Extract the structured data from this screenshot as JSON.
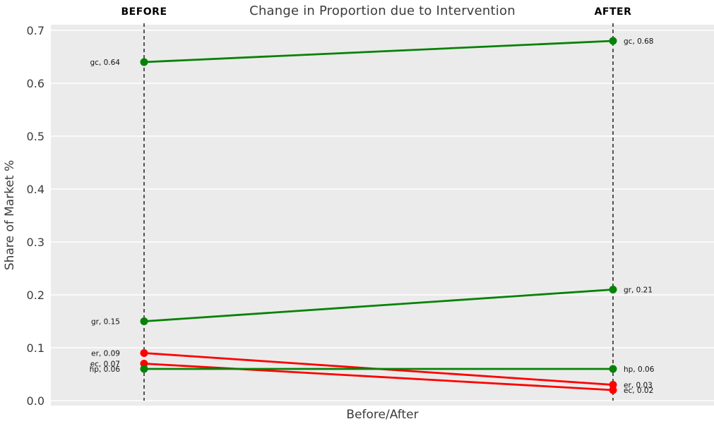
{
  "chart_data": {
    "type": "line",
    "variant": "slopegraph",
    "title": "Change in Proportion due to Intervention",
    "xlabel": "Before/After",
    "ylabel": "Share of Market %",
    "columns": [
      "BEFORE",
      "AFTER"
    ],
    "ylim": [
      0.0,
      0.7
    ],
    "yticks": [
      "0.0",
      "0.1",
      "0.2",
      "0.3",
      "0.4",
      "0.5",
      "0.6",
      "0.7"
    ],
    "grid": "horizontal major gridlines, white on gray panel",
    "legend_position": "none",
    "colors": {
      "increase": "#068206",
      "decrease": "#ff0000",
      "panel_bg": "#ebebeb",
      "grid": "#ffffff",
      "guide_line": "#000000",
      "text": "#3c3c3c",
      "point_label": "#111111"
    },
    "series": [
      {
        "name": "gc",
        "before": 0.64,
        "after": 0.68,
        "trend": "increase",
        "label_before": "gc, 0.64",
        "label_after": "gc, 0.68"
      },
      {
        "name": "gr",
        "before": 0.15,
        "after": 0.21,
        "trend": "increase",
        "label_before": "gr, 0.15",
        "label_after": "gr, 0.21"
      },
      {
        "name": "er",
        "before": 0.09,
        "after": 0.03,
        "trend": "decrease",
        "label_before": "er, 0.09",
        "label_after": "er, 0.03"
      },
      {
        "name": "ec",
        "before": 0.07,
        "after": 0.02,
        "trend": "decrease",
        "label_before": "ec, 0.07",
        "label_after": "ec, 0.02"
      },
      {
        "name": "hp",
        "before": 0.06,
        "after": 0.06,
        "trend": "increase",
        "label_before": "hp, 0.06",
        "label_after": "hp, 0.06"
      }
    ]
  }
}
